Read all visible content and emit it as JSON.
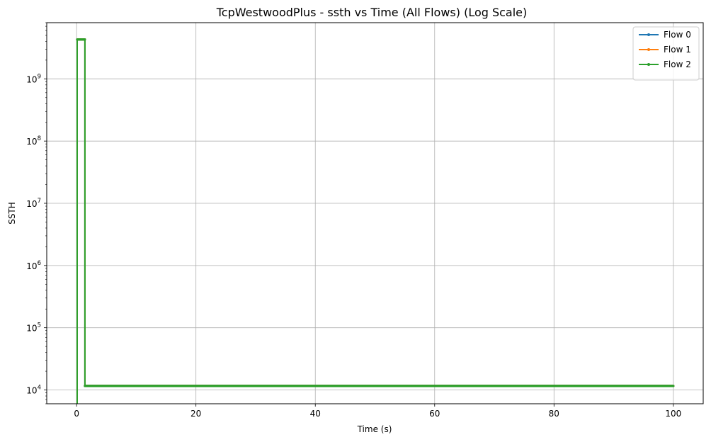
{
  "chart_data": {
    "type": "line",
    "title": "TcpWestwoodPlus - ssth vs Time (All Flows) (Log Scale)",
    "xlabel": "Time (s)",
    "ylabel": "SSTH",
    "xlim": [
      -5,
      105
    ],
    "ylim": [
      6000,
      8000000000
    ],
    "yscale": "log",
    "grid": true,
    "legend_position": "top-right",
    "x_ticks": [
      0,
      20,
      40,
      60,
      80,
      100
    ],
    "x_tick_labels": [
      "0",
      "20",
      "40",
      "60",
      "80",
      "100"
    ],
    "y_ticks": [
      10000,
      100000,
      1000000,
      10000000,
      100000000,
      1000000000
    ],
    "y_tick_labels": [
      {
        "base": "10",
        "exp": "4"
      },
      {
        "base": "10",
        "exp": "5"
      },
      {
        "base": "10",
        "exp": "6"
      },
      {
        "base": "10",
        "exp": "7"
      },
      {
        "base": "10",
        "exp": "8"
      },
      {
        "base": "10",
        "exp": "9"
      }
    ],
    "series": [
      {
        "name": "Flow 0",
        "color": "#1f77b4",
        "x": [
          0.1,
          0.1,
          1.4,
          1.4,
          100
        ],
        "y": [
          6000,
          4294967295,
          4294967295,
          11600,
          11600
        ]
      },
      {
        "name": "Flow 1",
        "color": "#ff7f0e",
        "x": [
          0.1,
          0.1,
          1.4,
          1.4,
          100
        ],
        "y": [
          6000,
          4294967295,
          4294967295,
          11600,
          11600
        ]
      },
      {
        "name": "Flow 2",
        "color": "#2ca02c",
        "x": [
          0.1,
          0.1,
          1.4,
          1.4,
          100
        ],
        "y": [
          6000,
          4294967295,
          4294967295,
          11600,
          11600
        ]
      }
    ]
  }
}
